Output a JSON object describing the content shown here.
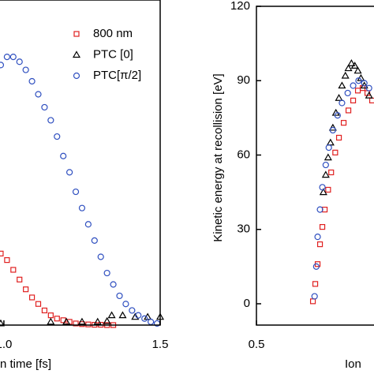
{
  "chart_data": [
    {
      "type": "scatter",
      "x_label": "n time [fs]",
      "xlim": [
        0.98,
        1.5
      ],
      "xticks": [
        {
          "value": 1.0,
          "label": "1.0"
        },
        1.5
      ],
      "ylim": [
        0,
        100
      ],
      "legend": "upper right",
      "series": [
        {
          "name": "800 nm",
          "color": "#e02020",
          "marker": "square",
          "x": [
            0.99,
            1.01,
            1.03,
            1.05,
            1.07,
            1.09,
            1.11,
            1.13,
            1.15,
            1.17,
            1.19,
            1.21,
            1.23,
            1.25,
            1.27,
            1.29,
            1.31,
            1.33,
            1.35
          ],
          "values": [
            22,
            20,
            17,
            14,
            11,
            8.5,
            6.5,
            4.5,
            3,
            2,
            1.5,
            1,
            0.5,
            0.3,
            0.2,
            0.1,
            0.1,
            0,
            0
          ]
        },
        {
          "name": "PTC [0]",
          "color": "#000000",
          "marker": "triangle",
          "x": [
            0.99,
            1.15,
            1.2,
            1.25,
            1.3,
            1.33,
            1.345,
            1.38,
            1.42,
            1.46,
            1.5
          ],
          "values": [
            0.5,
            1,
            1,
            1,
            1,
            1.2,
            3,
            3,
            2.5,
            2.5,
            2.5
          ]
        },
        {
          "name": "PTC[π/2]",
          "color": "#3050c0",
          "marker": "circle",
          "x": [
            0.99,
            1.01,
            1.03,
            1.05,
            1.07,
            1.09,
            1.11,
            1.13,
            1.15,
            1.17,
            1.19,
            1.21,
            1.23,
            1.25,
            1.27,
            1.29,
            1.31,
            1.33,
            1.35,
            1.37,
            1.39,
            1.41,
            1.43,
            1.45,
            1.47,
            1.49
          ],
          "values": [
            80,
            82.5,
            82.5,
            81,
            78.5,
            75,
            71,
            67,
            63,
            58,
            52,
            47,
            41,
            36,
            31,
            26,
            21,
            16,
            12.5,
            9,
            6.5,
            4.5,
            3,
            2,
            1,
            0.5
          ]
        }
      ]
    },
    {
      "type": "scatter",
      "x_label": "Ion",
      "y_label": "Kinetic energy at recollision [eV]",
      "xlim": [
        0.5,
        0.85
      ],
      "xticks": [
        0.5
      ],
      "ylim": [
        -8.6,
        120
      ],
      "yticks": [
        0,
        30,
        60,
        90,
        120
      ],
      "series": [
        {
          "color": "#e02020",
          "marker": "square",
          "x": [
            0.667,
            0.674,
            0.681,
            0.688,
            0.695,
            0.702,
            0.712,
            0.721,
            0.733,
            0.744,
            0.758,
            0.772,
            0.786,
            0.8,
            0.814,
            0.828,
            0.842
          ],
          "values": [
            1,
            8,
            16,
            24,
            31,
            38,
            46,
            53,
            61,
            67,
            73,
            78,
            82,
            86,
            87,
            85,
            82
          ]
        },
        {
          "color": "#000000",
          "marker": "triangle",
          "x": [
            0.698,
            0.705,
            0.712,
            0.719,
            0.726,
            0.735,
            0.744,
            0.753,
            0.763,
            0.772,
            0.781,
            0.791,
            0.8,
            0.809,
            0.819,
            0.833
          ],
          "values": [
            45,
            52,
            59,
            65,
            71,
            77,
            83,
            88,
            92,
            95,
            97,
            96,
            94,
            91,
            88,
            84
          ]
        },
        {
          "color": "#3050c0",
          "marker": "circle",
          "x": [
            0.672,
            0.677,
            0.681,
            0.688,
            0.695,
            0.705,
            0.714,
            0.726,
            0.74,
            0.753,
            0.77,
            0.786,
            0.802,
            0.819,
            0.833
          ],
          "values": [
            3,
            15,
            27,
            38,
            47,
            56,
            63,
            70,
            76,
            81,
            85,
            88,
            90,
            89,
            87
          ]
        }
      ]
    }
  ]
}
